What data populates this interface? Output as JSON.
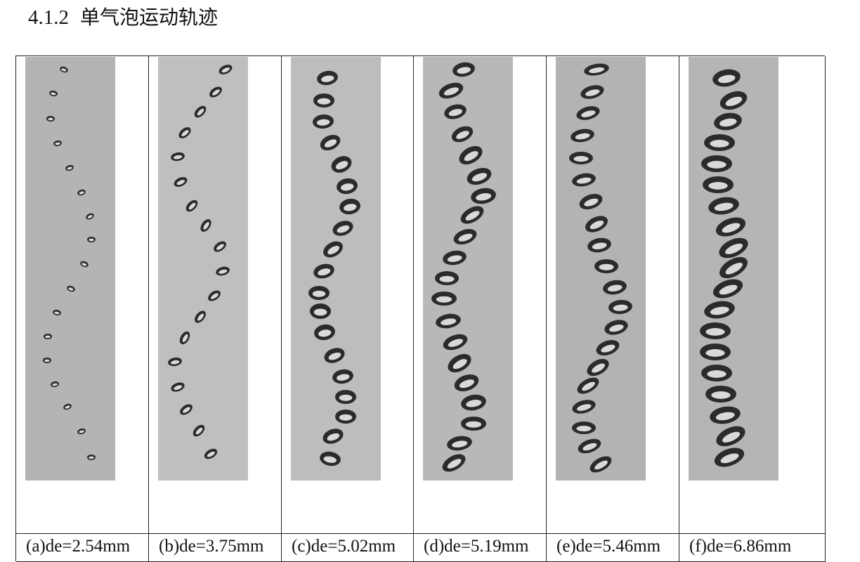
{
  "section": {
    "number": "4.1.2",
    "title": "单气泡运动轨迹"
  },
  "panels": [
    {
      "caption": "(a)de=2.54mm",
      "bg": "#b4b4b4",
      "points": [
        [
          55,
          18,
          6,
          4,
          20
        ],
        [
          40,
          52,
          6,
          4,
          10
        ],
        [
          36,
          88,
          6,
          4,
          0
        ],
        [
          46,
          123,
          6,
          4,
          -10
        ],
        [
          63,
          158,
          6,
          4,
          -15
        ],
        [
          80,
          193,
          6,
          4,
          -20
        ],
        [
          92,
          227,
          6,
          4,
          -25
        ],
        [
          94,
          260,
          6,
          4,
          0
        ],
        [
          84,
          295,
          6,
          4,
          20
        ],
        [
          65,
          330,
          6,
          4,
          20
        ],
        [
          45,
          364,
          6,
          4,
          10
        ],
        [
          32,
          398,
          6,
          4,
          0
        ],
        [
          31,
          432,
          6,
          4,
          0
        ],
        [
          42,
          466,
          6,
          4,
          -10
        ],
        [
          60,
          498,
          6,
          4,
          -20
        ],
        [
          80,
          533,
          6,
          4,
          -15
        ],
        [
          94,
          570,
          6,
          4,
          0
        ]
      ]
    },
    {
      "caption": "(b)de=3.75mm",
      "bg": "#bfbfbf",
      "points": [
        [
          96,
          18,
          10,
          6,
          -25
        ],
        [
          82,
          50,
          10,
          6,
          -35
        ],
        [
          60,
          78,
          10,
          6,
          -45
        ],
        [
          38,
          108,
          10,
          6,
          -40
        ],
        [
          28,
          142,
          10,
          6,
          -10
        ],
        [
          32,
          178,
          10,
          6,
          -25
        ],
        [
          48,
          212,
          10,
          6,
          -45
        ],
        [
          68,
          240,
          10,
          6,
          -55
        ],
        [
          88,
          270,
          10,
          6,
          -35
        ],
        [
          92,
          305,
          10,
          6,
          -15
        ],
        [
          80,
          340,
          10,
          6,
          -35
        ],
        [
          60,
          370,
          10,
          6,
          -50
        ],
        [
          38,
          400,
          10,
          6,
          -60
        ],
        [
          24,
          434,
          10,
          6,
          -10
        ],
        [
          28,
          470,
          10,
          6,
          -20
        ],
        [
          40,
          502,
          10,
          6,
          -35
        ],
        [
          58,
          532,
          10,
          6,
          -45
        ],
        [
          75,
          565,
          10,
          6,
          -30
        ]
      ]
    },
    {
      "caption": "(c)de=5.02mm",
      "bg": "#bdbdbd",
      "points": [
        [
          52,
          30,
          15,
          10,
          -10
        ],
        [
          47,
          62,
          15,
          10,
          0
        ],
        [
          46,
          92,
          15,
          10,
          -5
        ],
        [
          56,
          122,
          15,
          10,
          -25
        ],
        [
          72,
          153,
          15,
          11,
          -25
        ],
        [
          80,
          184,
          15,
          11,
          -10
        ],
        [
          84,
          213,
          15,
          11,
          -10
        ],
        [
          74,
          244,
          15,
          10,
          -20
        ],
        [
          60,
          274,
          15,
          10,
          -30
        ],
        [
          47,
          305,
          15,
          10,
          -15
        ],
        [
          40,
          336,
          15,
          10,
          0
        ],
        [
          42,
          362,
          15,
          11,
          0
        ],
        [
          48,
          392,
          15,
          11,
          -10
        ],
        [
          62,
          425,
          15,
          10,
          -20
        ],
        [
          74,
          455,
          15,
          10,
          -10
        ],
        [
          78,
          484,
          15,
          10,
          0
        ],
        [
          78,
          512,
          15,
          10,
          0
        ],
        [
          60,
          540,
          15,
          10,
          -20
        ],
        [
          56,
          572,
          15,
          10,
          10
        ]
      ]
    },
    {
      "caption": "(d)de=5.19mm",
      "bg": "#b8b8b8",
      "points": [
        [
          58,
          18,
          16,
          10,
          -10
        ],
        [
          40,
          48,
          18,
          10,
          -20
        ],
        [
          46,
          78,
          16,
          10,
          -15
        ],
        [
          56,
          110,
          16,
          10,
          -25
        ],
        [
          68,
          140,
          18,
          11,
          -30
        ],
        [
          80,
          170,
          18,
          11,
          -20
        ],
        [
          86,
          198,
          18,
          11,
          -10
        ],
        [
          70,
          225,
          18,
          10,
          -30
        ],
        [
          60,
          256,
          17,
          10,
          -20
        ],
        [
          45,
          286,
          17,
          10,
          -10
        ],
        [
          34,
          315,
          17,
          10,
          0
        ],
        [
          30,
          344,
          18,
          10,
          0
        ],
        [
          36,
          376,
          18,
          10,
          -10
        ],
        [
          46,
          406,
          18,
          10,
          -20
        ],
        [
          52,
          436,
          18,
          11,
          -30
        ],
        [
          62,
          464,
          18,
          11,
          -20
        ],
        [
          72,
          492,
          18,
          11,
          -10
        ],
        [
          72,
          522,
          18,
          10,
          0
        ],
        [
          52,
          550,
          18,
          10,
          -10
        ],
        [
          44,
          578,
          18,
          10,
          -30
        ]
      ]
    },
    {
      "caption": "(e)de=5.46mm",
      "bg": "#b3b3b3",
      "points": [
        [
          58,
          18,
          18,
          8,
          -10
        ],
        [
          52,
          50,
          17,
          9,
          -15
        ],
        [
          46,
          80,
          17,
          9,
          -15
        ],
        [
          38,
          112,
          17,
          9,
          -10
        ],
        [
          36,
          144,
          17,
          9,
          0
        ],
        [
          40,
          175,
          17,
          9,
          -10
        ],
        [
          50,
          206,
          17,
          10,
          -20
        ],
        [
          58,
          238,
          17,
          10,
          -25
        ],
        [
          62,
          268,
          17,
          10,
          -10
        ],
        [
          72,
          298,
          17,
          10,
          0
        ],
        [
          84,
          328,
          17,
          10,
          -10
        ],
        [
          92,
          356,
          17,
          10,
          -5
        ],
        [
          86,
          385,
          17,
          10,
          -15
        ],
        [
          74,
          414,
          17,
          10,
          -20
        ],
        [
          60,
          442,
          17,
          10,
          -30
        ],
        [
          46,
          468,
          17,
          9,
          -30
        ],
        [
          40,
          498,
          17,
          9,
          -15
        ],
        [
          40,
          528,
          17,
          9,
          0
        ],
        [
          48,
          554,
          17,
          9,
          -20
        ],
        [
          64,
          580,
          17,
          9,
          -30
        ]
      ]
    },
    {
      "caption": "(f)de=6.86mm",
      "bg": "#b5b5b5",
      "points": [
        [
          54,
          30,
          20,
          12,
          -10
        ],
        [
          64,
          62,
          20,
          12,
          -20
        ],
        [
          56,
          92,
          20,
          12,
          -10
        ],
        [
          44,
          122,
          22,
          12,
          0
        ],
        [
          40,
          152,
          22,
          12,
          0
        ],
        [
          42,
          182,
          22,
          12,
          0
        ],
        [
          50,
          212,
          22,
          12,
          -10
        ],
        [
          60,
          242,
          22,
          12,
          -20
        ],
        [
          64,
          272,
          22,
          12,
          -25
        ],
        [
          64,
          300,
          22,
          12,
          -30
        ],
        [
          56,
          330,
          22,
          12,
          -20
        ],
        [
          44,
          360,
          22,
          12,
          -10
        ],
        [
          38,
          390,
          22,
          12,
          0
        ],
        [
          38,
          420,
          22,
          12,
          0
        ],
        [
          40,
          450,
          22,
          12,
          0
        ],
        [
          46,
          480,
          22,
          12,
          0
        ],
        [
          52,
          510,
          22,
          12,
          -10
        ],
        [
          60,
          540,
          22,
          12,
          -25
        ],
        [
          58,
          570,
          22,
          12,
          -20
        ]
      ]
    }
  ]
}
